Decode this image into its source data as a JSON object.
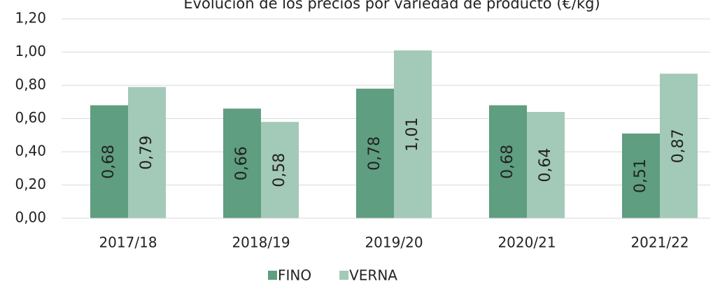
{
  "chart_data": {
    "type": "bar",
    "title": "Evolución de los precios por variedad de producto (€/kg)",
    "categories": [
      "2017/18",
      "2018/19",
      "2019/20",
      "2020/21",
      "2021/22"
    ],
    "series": [
      {
        "name": "FINO",
        "color": "#5f9e80",
        "values": [
          0.68,
          0.66,
          0.78,
          0.68,
          0.51
        ],
        "value_labels": [
          "0,68",
          "0,66",
          "0,78",
          "0,68",
          "0,51"
        ]
      },
      {
        "name": "VERNA",
        "color": "#a3c9b8",
        "values": [
          0.79,
          0.58,
          1.01,
          0.64,
          0.87
        ],
        "value_labels": [
          "0,79",
          "0,58",
          "1,01",
          "0,64",
          "0,87"
        ]
      }
    ],
    "ylim": [
      0,
      1.2
    ],
    "yticks": [
      {
        "value": 0,
        "label": "0,00"
      },
      {
        "value": 0.2,
        "label": "0,20"
      },
      {
        "value": 0.4,
        "label": "0,40"
      },
      {
        "value": 0.6,
        "label": "0,60"
      },
      {
        "value": 0.8,
        "label": "0,80"
      },
      {
        "value": 1.0,
        "label": "1,00"
      },
      {
        "value": 1.2,
        "label": "1,20"
      }
    ],
    "grid": true,
    "legend": "bottom"
  }
}
